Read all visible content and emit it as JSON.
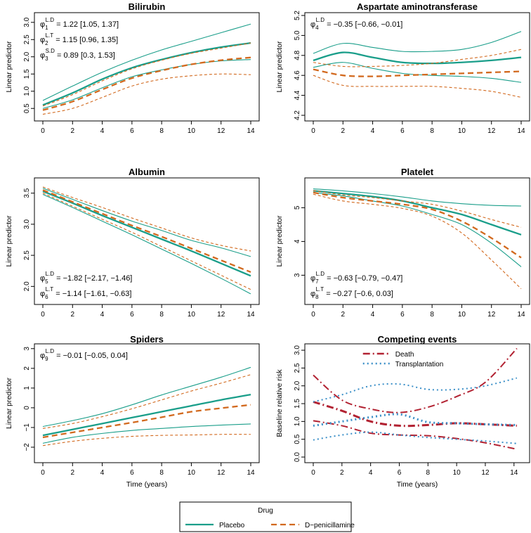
{
  "colors": {
    "placebo": "#1a9e8a",
    "dpen": "#d2691e",
    "death": "#b22232",
    "transplant": "#3a8fc8",
    "axis": "#000000"
  },
  "legend": {
    "title": "Drug",
    "placebo_label": "Placebo",
    "dpen_label": "D−penicillamine"
  },
  "chart_data": [
    {
      "type": "line",
      "title": "Bilirubin",
      "xlabel": "",
      "ylabel": "Linear predictor",
      "xlim": [
        0,
        14
      ],
      "ylim": [
        0.3,
        3.2
      ],
      "xticks": [
        "0",
        "2",
        "4",
        "6",
        "8",
        "10",
        "12",
        "14"
      ],
      "yticks": [
        "0.5",
        "1.0",
        "1.5",
        "2.0",
        "2.5",
        "3.0"
      ],
      "annotations_anchor": "top-left",
      "annotations": [
        {
          "sym": "φ",
          "sub": "1",
          "sup": "L.D",
          "text": " = 1.22 [1.05, 1.37]"
        },
        {
          "sym": "φ",
          "sub": "2",
          "sup": "L.T",
          "text": " = 1.15 [0.96, 1.35]"
        },
        {
          "sym": "φ",
          "sub": "3",
          "sup": "S.D",
          "text": " = 0.89 [0.3, 1.53]"
        }
      ],
      "x": [
        0,
        2,
        4,
        6,
        8,
        10,
        12,
        14
      ],
      "series": [
        {
          "name": "Placebo",
          "values": [
            0.6,
            0.95,
            1.35,
            1.68,
            1.92,
            2.12,
            2.28,
            2.4
          ],
          "lower": [
            0.5,
            0.75,
            1.1,
            1.42,
            1.62,
            1.78,
            1.88,
            1.92
          ],
          "upper": [
            0.73,
            1.15,
            1.55,
            1.9,
            2.2,
            2.45,
            2.7,
            2.95
          ]
        },
        {
          "name": "D-penicillamine",
          "values": [
            0.45,
            0.7,
            1.05,
            1.38,
            1.6,
            1.78,
            1.9,
            1.98
          ],
          "lower": [
            0.33,
            0.5,
            0.82,
            1.15,
            1.35,
            1.45,
            1.5,
            1.48
          ],
          "upper": [
            0.57,
            0.9,
            1.3,
            1.65,
            1.9,
            2.1,
            2.25,
            2.4
          ]
        }
      ]
    },
    {
      "type": "line",
      "title": "Aspartate aminotransferase",
      "xlabel": "",
      "ylabel": "Linear predictor",
      "xlim": [
        0,
        14
      ],
      "ylim": [
        4.2,
        5.2
      ],
      "xticks": [
        "0",
        "2",
        "4",
        "6",
        "8",
        "10",
        "12",
        "14"
      ],
      "yticks": [
        "4.2",
        "4.4",
        "4.6",
        "4.8",
        "5.0",
        "5.2"
      ],
      "annotations_anchor": "top-left",
      "annotations": [
        {
          "sym": "φ",
          "sub": "4",
          "sup": "L.D",
          "text": " = −0.35 [−0.66, −0.01]"
        }
      ],
      "x": [
        0,
        2,
        4,
        6,
        8,
        10,
        12,
        14
      ],
      "series": [
        {
          "name": "Placebo",
          "values": [
            4.75,
            4.83,
            4.78,
            4.73,
            4.72,
            4.73,
            4.75,
            4.78
          ],
          "lower": [
            4.68,
            4.73,
            4.67,
            4.62,
            4.6,
            4.59,
            4.57,
            4.53
          ],
          "upper": [
            4.82,
            4.92,
            4.88,
            4.84,
            4.84,
            4.86,
            4.93,
            5.04
          ]
        },
        {
          "name": "D-penicillamine",
          "values": [
            4.66,
            4.6,
            4.59,
            4.6,
            4.61,
            4.62,
            4.63,
            4.64
          ],
          "lower": [
            4.6,
            4.5,
            4.49,
            4.49,
            4.49,
            4.47,
            4.44,
            4.38
          ],
          "upper": [
            4.73,
            4.69,
            4.69,
            4.7,
            4.72,
            4.76,
            4.8,
            4.86
          ]
        }
      ]
    },
    {
      "type": "line",
      "title": "Albumin",
      "xlabel": "",
      "ylabel": "Linear predictor",
      "xlim": [
        0,
        14
      ],
      "ylim": [
        1.8,
        3.7
      ],
      "xticks": [
        "0",
        "2",
        "4",
        "6",
        "8",
        "10",
        "12",
        "14"
      ],
      "yticks": [
        "2.0",
        "2.5",
        "3.0",
        "3.5"
      ],
      "annotations_anchor": "bottom-left",
      "annotations": [
        {
          "sym": "φ",
          "sub": "5",
          "sup": "L.D",
          "text": " = −1.82 [−2.17, −1.46]"
        },
        {
          "sym": "φ",
          "sub": "6",
          "sup": "L.T",
          "text": " = −1.14 [−1.61, −0.63]"
        }
      ],
      "x": [
        0,
        2,
        4,
        6,
        8,
        10,
        12,
        14
      ],
      "series": [
        {
          "name": "Placebo",
          "values": [
            3.53,
            3.34,
            3.14,
            2.95,
            2.76,
            2.57,
            2.37,
            2.17
          ],
          "lower": [
            3.48,
            3.27,
            3.05,
            2.83,
            2.6,
            2.37,
            2.13,
            1.88
          ],
          "upper": [
            3.58,
            3.4,
            3.22,
            3.05,
            2.9,
            2.74,
            2.62,
            2.48
          ]
        },
        {
          "name": "D-penicillamine",
          "values": [
            3.55,
            3.36,
            3.17,
            2.98,
            2.8,
            2.61,
            2.42,
            2.23
          ],
          "lower": [
            3.5,
            3.29,
            3.08,
            2.87,
            2.64,
            2.41,
            2.18,
            1.95
          ],
          "upper": [
            3.6,
            3.43,
            3.27,
            3.1,
            2.94,
            2.78,
            2.66,
            2.57
          ]
        }
      ]
    },
    {
      "type": "line",
      "title": "Platelet",
      "xlabel": "",
      "ylabel": "Linear predictor",
      "xlim": [
        0,
        14
      ],
      "ylim": [
        2.3,
        5.8
      ],
      "xticks": [
        "0",
        "2",
        "4",
        "6",
        "8",
        "10",
        "12",
        "14"
      ],
      "yticks": [
        "3",
        "4",
        "5"
      ],
      "annotations_anchor": "bottom-left",
      "annotations": [
        {
          "sym": "φ",
          "sub": "7",
          "sup": "L.D",
          "text": " = −0.63 [−0.79, −0.47]"
        },
        {
          "sym": "φ",
          "sub": "8",
          "sup": "L.T",
          "text": " = −0.27 [−0.6, 0.03]"
        }
      ],
      "x": [
        0,
        2,
        4,
        6,
        8,
        10,
        12,
        14
      ],
      "series": [
        {
          "name": "Placebo",
          "values": [
            5.5,
            5.42,
            5.33,
            5.2,
            5.0,
            4.8,
            4.5,
            4.2
          ],
          "lower": [
            5.45,
            5.35,
            5.2,
            5.05,
            4.8,
            4.5,
            3.95,
            3.25
          ],
          "upper": [
            5.56,
            5.5,
            5.42,
            5.32,
            5.2,
            5.12,
            5.07,
            5.05
          ]
        },
        {
          "name": "D-penicillamine",
          "values": [
            5.45,
            5.3,
            5.2,
            5.1,
            4.95,
            4.6,
            4.1,
            3.52
          ],
          "lower": [
            5.4,
            5.2,
            5.1,
            4.98,
            4.75,
            4.25,
            3.45,
            2.6
          ],
          "upper": [
            5.51,
            5.38,
            5.3,
            5.2,
            5.1,
            4.9,
            4.65,
            4.42
          ]
        }
      ]
    },
    {
      "type": "line",
      "title": "Spiders",
      "xlabel": "Time (years)",
      "ylabel": "Linear predictor",
      "xlim": [
        0,
        14
      ],
      "ylim": [
        -2.5,
        3.1
      ],
      "xticks": [
        "0",
        "2",
        "4",
        "6",
        "8",
        "10",
        "12",
        "14"
      ],
      "yticks": [
        "−2",
        "−1",
        "0",
        "1",
        "2",
        "3"
      ],
      "annotations_anchor": "top-left",
      "annotations": [
        {
          "sym": "φ",
          "sub": "9",
          "sup": "L.D",
          "text": " = −0.01 [−0.05, 0.04]"
        }
      ],
      "x": [
        0,
        2,
        4,
        6,
        8,
        10,
        12,
        14
      ],
      "series": [
        {
          "name": "Placebo",
          "values": [
            -1.4,
            -1.1,
            -0.8,
            -0.5,
            -0.2,
            0.1,
            0.4,
            0.67
          ],
          "lower": [
            -1.8,
            -1.5,
            -1.3,
            -1.15,
            -1.05,
            -0.95,
            -0.88,
            -0.82
          ],
          "upper": [
            -0.95,
            -0.65,
            -0.3,
            0.15,
            0.65,
            1.1,
            1.55,
            2.05
          ]
        },
        {
          "name": "D-penicillamine",
          "values": [
            -1.5,
            -1.25,
            -1.0,
            -0.75,
            -0.48,
            -0.2,
            -0.02,
            0.15
          ],
          "lower": [
            -1.92,
            -1.7,
            -1.55,
            -1.45,
            -1.4,
            -1.38,
            -1.35,
            -1.35
          ],
          "upper": [
            -1.05,
            -0.8,
            -0.45,
            -0.05,
            0.4,
            0.85,
            1.25,
            1.68
          ]
        }
      ]
    },
    {
      "type": "line",
      "title": "Competing events",
      "xlabel": "Time (years)",
      "ylabel": "Baseline relative risk",
      "xlim": [
        0,
        14.5
      ],
      "ylim": [
        0,
        3.1
      ],
      "xticks": [
        "0",
        "2",
        "4",
        "6",
        "8",
        "10",
        "12",
        "14"
      ],
      "yticks": [
        "0.0",
        "0.5",
        "1.0",
        "1.5",
        "2.0",
        "2.5",
        "3.0"
      ],
      "legend_entries": [
        "Death",
        "Transplantation"
      ],
      "x": [
        0,
        2,
        4,
        6,
        8,
        10,
        12,
        14.2
      ],
      "series": [
        {
          "name": "Death",
          "values": [
            1.55,
            1.3,
            1.0,
            0.88,
            0.9,
            0.95,
            0.92,
            0.88
          ],
          "lower": [
            1.02,
            0.88,
            0.67,
            0.62,
            0.6,
            0.52,
            0.4,
            0.22
          ],
          "upper": [
            2.3,
            1.6,
            1.35,
            1.25,
            1.4,
            1.7,
            2.1,
            3.05
          ]
        },
        {
          "name": "Transplantation",
          "values": [
            0.88,
            1.0,
            1.12,
            1.2,
            0.98,
            0.95,
            0.92,
            0.9
          ],
          "lower": [
            0.48,
            0.62,
            0.7,
            0.62,
            0.55,
            0.5,
            0.45,
            0.38
          ],
          "upper": [
            1.55,
            1.75,
            2.0,
            2.05,
            1.9,
            1.9,
            2.0,
            2.22
          ]
        }
      ]
    }
  ]
}
